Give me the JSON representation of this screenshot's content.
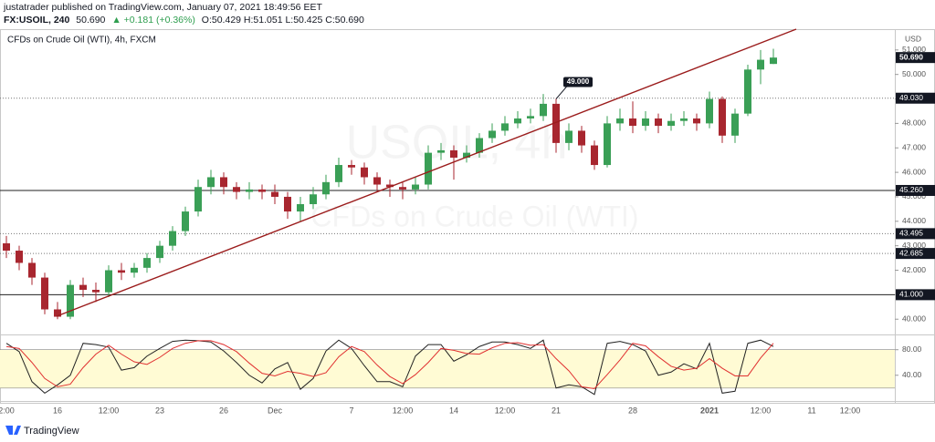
{
  "header": {
    "publisher": "justatrader published on TradingView.com, January 07, 2021 18:49:56 EET",
    "symbol": "FX:USOIL, 240",
    "last": "50.690",
    "change": "▲ +0.181 (+0.36%)",
    "ohlc": "O:50.429 H:51.051 L:50.425 C:50.690"
  },
  "footer": {
    "brand": "TradingView"
  },
  "chart_data": [
    {
      "type": "candlestick",
      "title": "CFDs on Crude Oil (WTI), 4h, FXCM",
      "watermark": [
        "USOIL, 4h",
        "CFDs on Crude Oil (WTI)"
      ],
      "y_unit": "USD",
      "categories": [
        "2:00",
        null,
        null,
        null,
        "16",
        null,
        null,
        null,
        "12:00",
        null,
        null,
        null,
        "23",
        null,
        null,
        null,
        null,
        "26",
        null,
        null,
        null,
        "Dec",
        null,
        null,
        null,
        null,
        null,
        "7",
        null,
        null,
        null,
        "12:00",
        null,
        null,
        null,
        "14",
        null,
        null,
        null,
        "12:00",
        null,
        null,
        null,
        "21",
        null,
        null,
        null,
        null,
        null,
        "28",
        null,
        null,
        null,
        null,
        null,
        "2021",
        null,
        null,
        null,
        "12:00",
        null,
        null,
        null,
        "11",
        null,
        null,
        "12:00",
        null,
        null,
        null
      ],
      "open": [
        43.1,
        42.8,
        42.3,
        41.7,
        40.4,
        40.1,
        41.4,
        41.2,
        41.1,
        42.0,
        41.9,
        42.1,
        42.5,
        43.0,
        43.6,
        44.4,
        45.4,
        45.8,
        45.4,
        45.2,
        45.3,
        45.2,
        45.0,
        44.4,
        44.7,
        45.1,
        45.6,
        46.3,
        46.2,
        45.8,
        45.5,
        45.4,
        45.3,
        45.5,
        46.8,
        46.9,
        46.6,
        46.8,
        47.4,
        47.7,
        48.0,
        48.2,
        48.3,
        48.8,
        47.2,
        47.7,
        47.1,
        46.3,
        48.0,
        48.2,
        47.9,
        48.2,
        47.9,
        48.1,
        48.2,
        48.0,
        49.0,
        47.5,
        48.4,
        50.2,
        50.429,
        null,
        null,
        null,
        null,
        null,
        null,
        null,
        null,
        null
      ],
      "high": [
        43.4,
        43.0,
        42.5,
        41.9,
        40.7,
        41.6,
        41.7,
        41.5,
        42.2,
        42.3,
        42.3,
        42.7,
        43.2,
        43.8,
        44.6,
        45.7,
        46.1,
        46.0,
        45.6,
        45.6,
        45.5,
        45.5,
        45.2,
        45.0,
        45.4,
        45.9,
        46.6,
        46.5,
        46.4,
        46.0,
        45.7,
        45.6,
        45.8,
        47.1,
        47.2,
        47.1,
        47.1,
        47.6,
        48.0,
        48.3,
        48.5,
        48.6,
        49.2,
        49.0,
        48.0,
        47.9,
        47.3,
        48.3,
        48.6,
        48.9,
        48.5,
        48.4,
        48.4,
        48.5,
        48.4,
        49.3,
        49.1,
        48.6,
        50.4,
        51.0,
        51.051,
        null,
        null,
        null,
        null,
        null,
        null,
        null,
        null,
        null
      ],
      "low": [
        42.5,
        42.0,
        41.4,
        40.2,
        40.0,
        40.0,
        40.9,
        40.7,
        40.9,
        41.6,
        41.7,
        41.9,
        42.3,
        42.8,
        43.4,
        44.2,
        45.1,
        45.1,
        44.9,
        44.9,
        44.9,
        44.7,
        44.1,
        44.0,
        44.5,
        44.9,
        45.4,
        45.9,
        45.5,
        45.2,
        45.0,
        44.9,
        45.1,
        45.3,
        46.5,
        45.7,
        46.4,
        46.6,
        47.2,
        47.5,
        47.8,
        48.0,
        48.1,
        46.8,
        46.9,
        46.8,
        46.1,
        46.2,
        47.7,
        47.6,
        47.7,
        47.6,
        47.7,
        47.9,
        47.7,
        47.8,
        47.2,
        47.2,
        48.3,
        49.6,
        50.425,
        null,
        null,
        null,
        null,
        null,
        null,
        null,
        null,
        null
      ],
      "close": [
        42.8,
        42.3,
        41.7,
        40.4,
        40.1,
        41.4,
        41.2,
        41.1,
        42.0,
        41.9,
        42.1,
        42.5,
        43.0,
        43.6,
        44.4,
        45.4,
        45.8,
        45.4,
        45.2,
        45.3,
        45.2,
        45.0,
        44.4,
        44.7,
        45.1,
        45.6,
        46.3,
        46.2,
        45.8,
        45.5,
        45.4,
        45.3,
        45.5,
        46.8,
        46.9,
        46.6,
        46.8,
        47.4,
        47.7,
        48.0,
        48.2,
        48.3,
        48.8,
        47.2,
        47.7,
        47.1,
        46.3,
        48.0,
        48.2,
        47.9,
        48.2,
        47.9,
        48.1,
        48.2,
        48.0,
        49.0,
        47.5,
        48.4,
        50.2,
        50.6,
        50.69,
        null,
        null,
        null,
        null,
        null,
        null,
        null,
        null,
        null
      ],
      "up_color": "#3a9f56",
      "down_color": "#a8262f",
      "ylim": [
        39.45,
        51.85
      ],
      "yticks": [
        {
          "value": 40,
          "label": "40.000"
        },
        {
          "value": 41,
          "label": "41.000"
        },
        {
          "value": 42,
          "label": "42.000"
        },
        {
          "value": 43,
          "label": "43.000"
        },
        {
          "value": 44,
          "label": "44.000"
        },
        {
          "value": 45,
          "label": "45.000"
        },
        {
          "value": 46,
          "label": "46.000"
        },
        {
          "value": 47,
          "label": "47.000"
        },
        {
          "value": 48,
          "label": "48.000"
        },
        {
          "value": 49,
          "label": "49.000"
        },
        {
          "value": 50,
          "label": "50.000"
        },
        {
          "value": 51,
          "label": "51.000"
        }
      ],
      "last_price": {
        "value": 50.69,
        "label": "50.690"
      },
      "levels": [
        {
          "value": 49.03,
          "label": "49.030",
          "style": "dotted"
        },
        {
          "value": 45.26,
          "label": "45.260",
          "style": "solid"
        },
        {
          "value": 43.495,
          "label": "43.495",
          "style": "dotted"
        },
        {
          "value": 42.685,
          "label": "42.685",
          "style": "dotted"
        },
        {
          "value": 41,
          "label": "41.000",
          "style": "solid"
        }
      ],
      "annotations": [
        {
          "value": 49,
          "label": "49.000"
        }
      ],
      "trend_color": "#9b1c1c"
    },
    {
      "type": "line",
      "series": [
        {
          "color": "#222222",
          "values": [
            90,
            77,
            30,
            12,
            25,
            40,
            90,
            88,
            84,
            48,
            52,
            70,
            82,
            93,
            95,
            94,
            92,
            78,
            60,
            40,
            28,
            50,
            60,
            18,
            35,
            78,
            95,
            82,
            55,
            30,
            30,
            22,
            70,
            88,
            88,
            62,
            72,
            85,
            92,
            92,
            88,
            82,
            95,
            20,
            25,
            22,
            10,
            90,
            93,
            88,
            78,
            40,
            45,
            58,
            50,
            90,
            12,
            15,
            90,
            95,
            85,
            null,
            null,
            null,
            null,
            null,
            null,
            null,
            null,
            null
          ]
        },
        {
          "color": "#e03030",
          "values": [
            85,
            82,
            60,
            35,
            22,
            26,
            52,
            73,
            87,
            73,
            61,
            57,
            68,
            82,
            90,
            94,
            94,
            88,
            77,
            59,
            43,
            39,
            46,
            43,
            38,
            44,
            69,
            85,
            77,
            56,
            38,
            27,
            41,
            60,
            82,
            79,
            74,
            73,
            83,
            90,
            91,
            87,
            88,
            66,
            47,
            22,
            19,
            41,
            64,
            90,
            86,
            69,
            54,
            48,
            51,
            66,
            51,
            39,
            39,
            67,
            90,
            null,
            null,
            null,
            null,
            null,
            null,
            null,
            null,
            null
          ]
        }
      ],
      "ylim": [
        4,
        101
      ],
      "yticks": [
        {
          "value": 40,
          "label": "40.00"
        },
        {
          "value": 80,
          "label": "80.00"
        }
      ],
      "band": [
        20,
        80
      ],
      "band_color": "#fffbd4"
    }
  ]
}
